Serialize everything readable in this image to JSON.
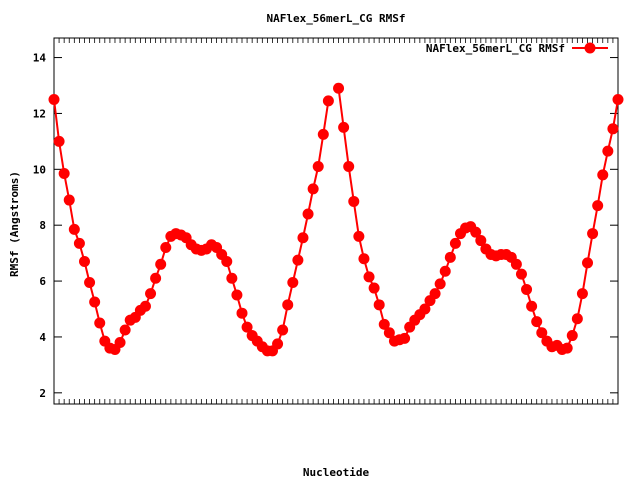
{
  "chart_data": {
    "type": "line",
    "title": "NAFlex_56merL_CG RMSf",
    "xlabel": "Nucleotide",
    "ylabel": "RMSf (Angstroms)",
    "ylim": [
      1.6,
      14.7
    ],
    "yticks": [
      2,
      4,
      6,
      8,
      10,
      12,
      14
    ],
    "legend": {
      "position": "top-right",
      "label": "NAFlex_56merL_CG RMSf"
    },
    "grid": false,
    "series_color": "#ff0000",
    "series": [
      {
        "name": "NAFlex_56merL_CG RMSf",
        "values": [
          12.5,
          11.0,
          9.85,
          8.9,
          7.85,
          7.35,
          6.7,
          5.95,
          5.25,
          4.5,
          3.85,
          3.6,
          3.55,
          3.8,
          4.25,
          4.6,
          4.7,
          4.95,
          5.1,
          5.55,
          6.1,
          6.6,
          7.2,
          7.6,
          7.7,
          7.65,
          7.55,
          7.3,
          7.15,
          7.1,
          7.15,
          7.3,
          7.2,
          6.95,
          6.7,
          6.1,
          5.5,
          4.85,
          4.35,
          4.05,
          3.85,
          3.65,
          3.5,
          3.5,
          3.75,
          4.25,
          5.15,
          5.95,
          6.75,
          7.55,
          8.4,
          9.3,
          10.1,
          11.25,
          12.45,
          null,
          12.9,
          11.5,
          10.1,
          8.85,
          7.6,
          6.8,
          6.15,
          5.75,
          5.15,
          4.45,
          4.15,
          3.85,
          3.9,
          3.95,
          4.35,
          4.6,
          4.8,
          5.0,
          5.3,
          5.55,
          5.9,
          6.35,
          6.85,
          7.35,
          7.7,
          7.9,
          7.95,
          7.75,
          7.45,
          7.15,
          6.95,
          6.9,
          6.95,
          6.95,
          6.85,
          6.6,
          6.25,
          5.7,
          5.1,
          4.55,
          4.15,
          3.85,
          3.65,
          3.7,
          3.55,
          3.6,
          4.05,
          4.65,
          5.55,
          6.65,
          7.7,
          8.7,
          9.8,
          10.65,
          11.45,
          12.5
        ]
      }
    ]
  }
}
